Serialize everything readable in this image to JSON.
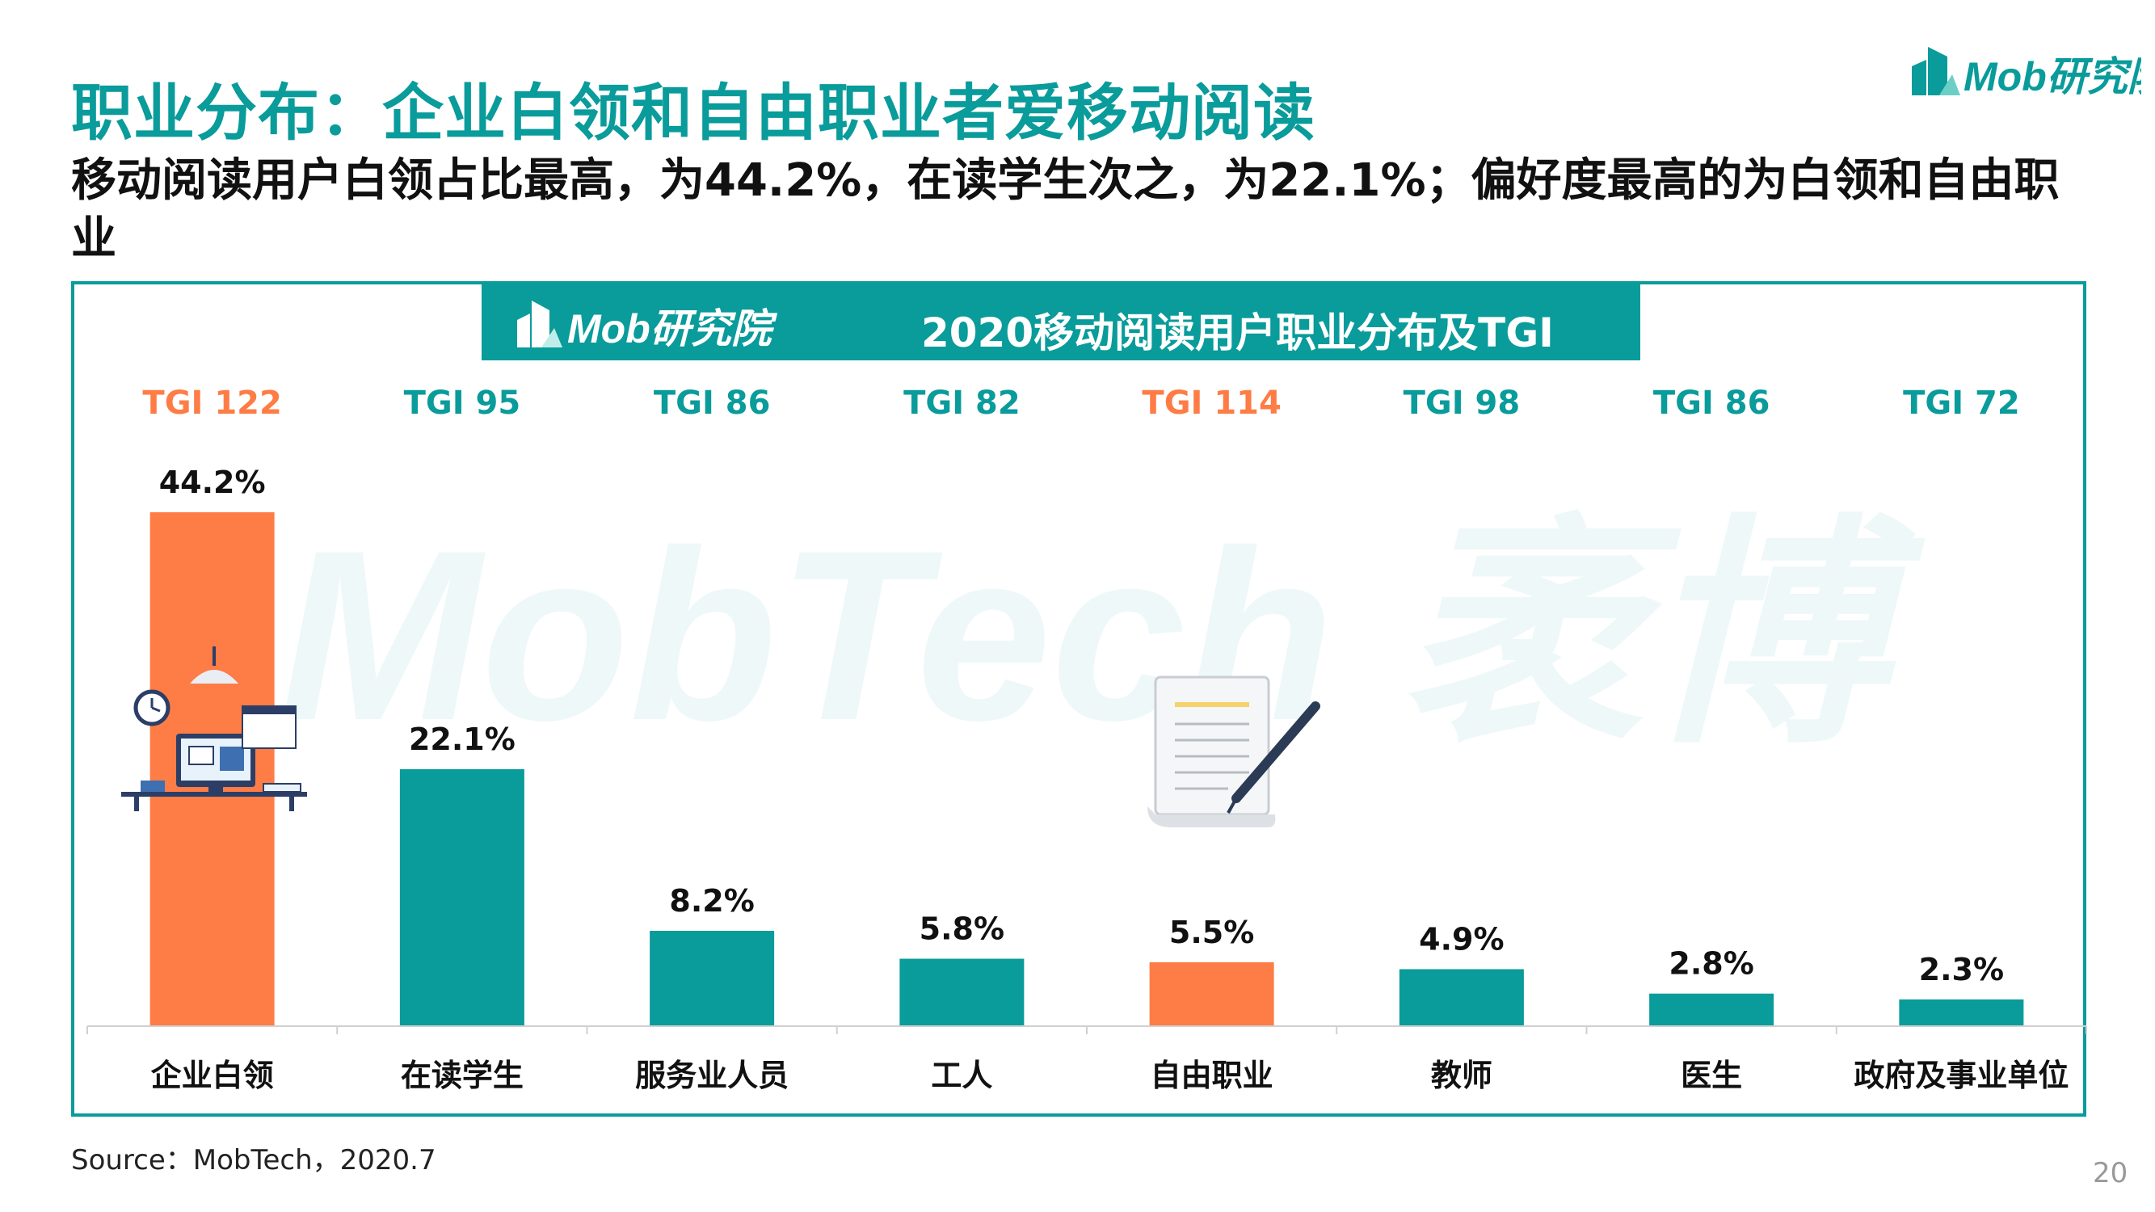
{
  "slide": {
    "title": "职业分布：企业白领和自由职业者爱移动阅读",
    "subtitle": "移动阅读用户白领占比最高，为44.2%，在读学生次之，为22.1%；偏好度最高的为白领和自由职业",
    "source": "Source：MobTech，2020.7",
    "page_number": "20",
    "brand_logo_text": "Mob研究院",
    "watermark_text": "MobTech 袤博"
  },
  "chart_data": {
    "type": "bar",
    "title": "2020移动阅读用户职业分布及TGI",
    "categories": [
      "企业白领",
      "在读学生",
      "服务业人员",
      "工人",
      "自由职业",
      "教师",
      "医生",
      "政府及事业单位"
    ],
    "series": [
      {
        "values": [
          44.2,
          22.1,
          8.2,
          5.8,
          5.5,
          4.9,
          2.8,
          2.3
        ],
        "value_labels": [
          "44.2%",
          "22.1%",
          "8.2%",
          "5.8%",
          "5.5%",
          "4.9%",
          "2.8%",
          "2.3%"
        ]
      }
    ],
    "tgi_labels": [
      "TGI 122",
      "TGI 95",
      "TGI 86",
      "TGI 82",
      "TGI 114",
      "TGI 98",
      "TGI 86",
      "TGI 72"
    ],
    "tgi_values": [
      122,
      95,
      86,
      82,
      114,
      98,
      86,
      72
    ],
    "highlighted_categories": [
      "企业白领",
      "自由职业"
    ],
    "ylim": [
      0,
      44.2
    ],
    "grid": false,
    "legend": "none",
    "colors": {
      "teal": "#0a9b9b",
      "orange": "#fe7c46",
      "tgi_teal": "#0a9b9b",
      "tgi_orange": "#fe7c46"
    }
  }
}
